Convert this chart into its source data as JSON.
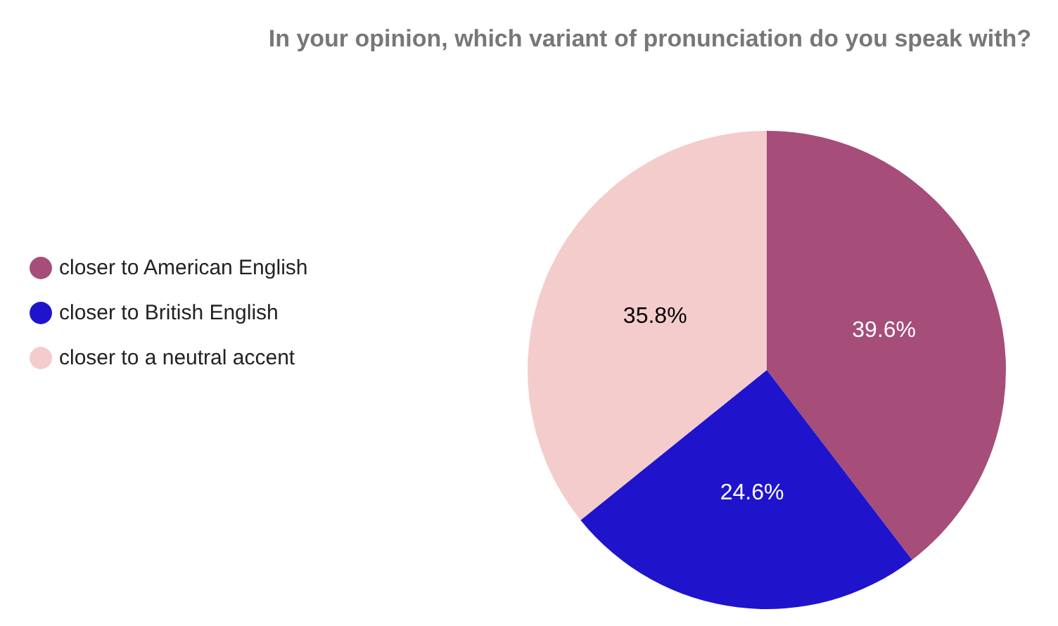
{
  "chart_data": {
    "type": "pie",
    "title": "In your opinion, which variant of pronunciation do you speak with?",
    "categories": [
      "closer to American English",
      "closer to British English",
      "closer to a neutral accent"
    ],
    "values": [
      39.6,
      24.6,
      35.8
    ],
    "value_labels": [
      "39.6%",
      "24.6%",
      "35.8%"
    ],
    "colors": [
      "#a64d79",
      "#1f14cc",
      "#f4cccc"
    ],
    "legend": "left"
  }
}
